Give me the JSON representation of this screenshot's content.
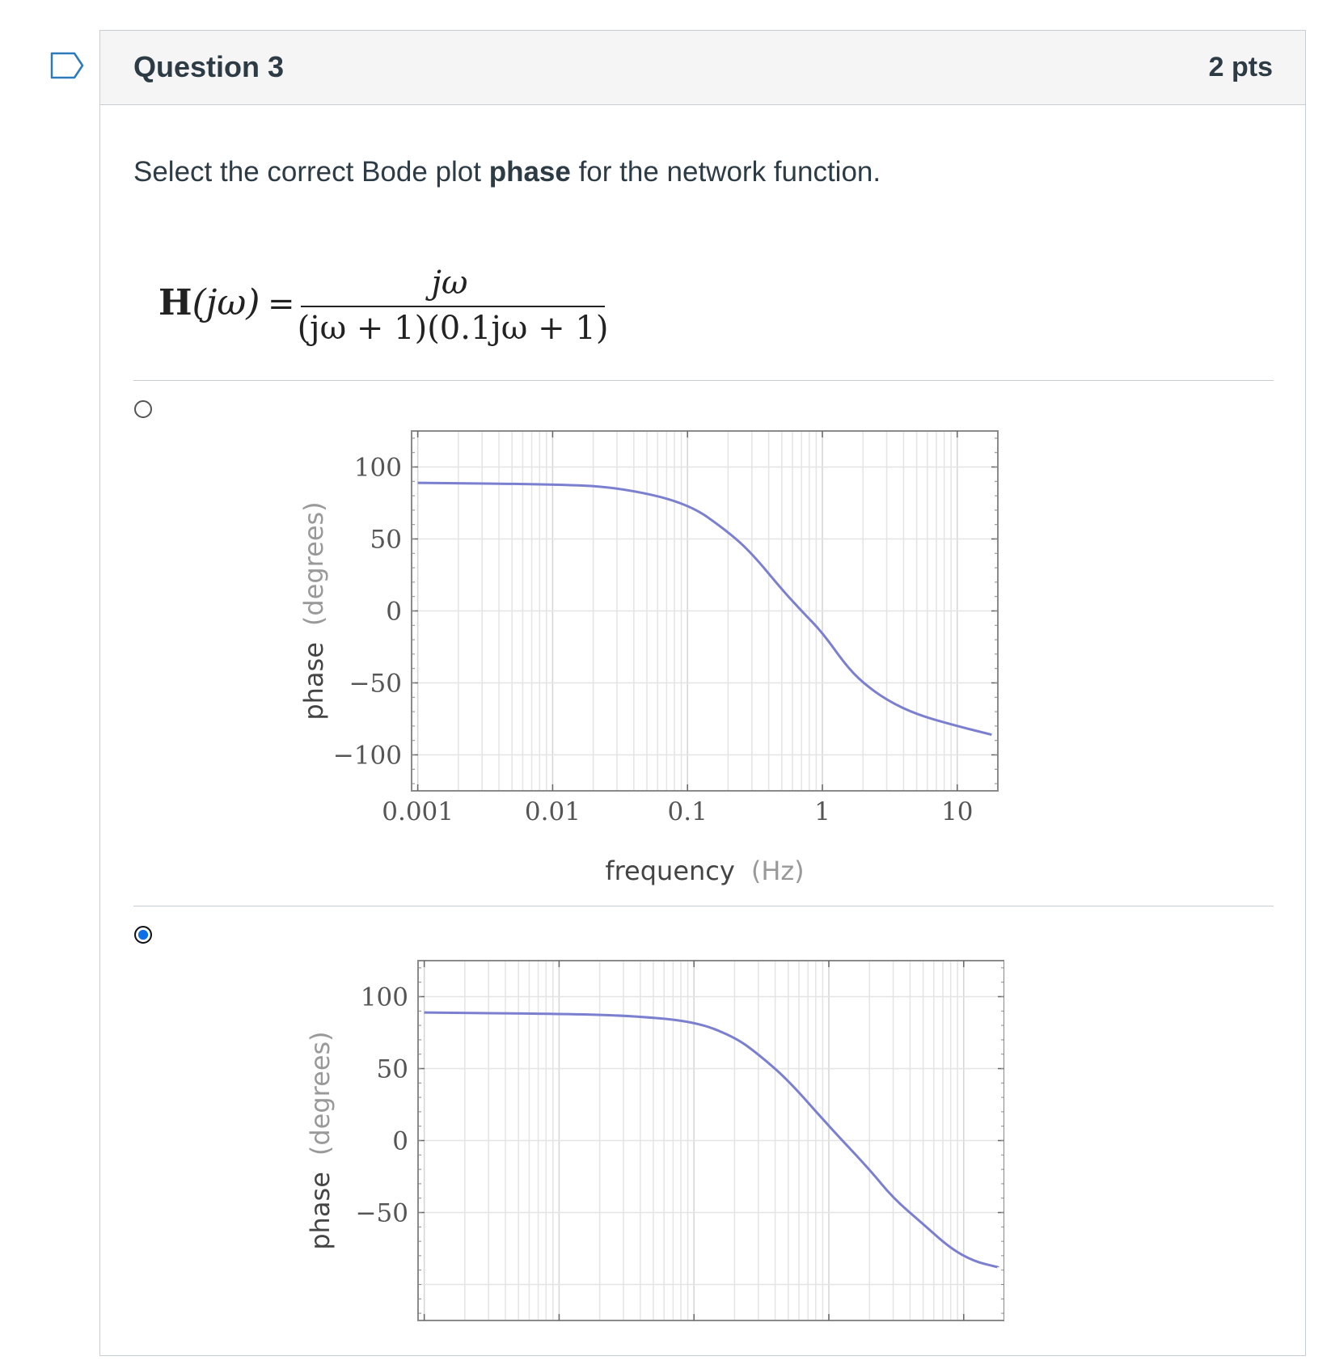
{
  "question": {
    "title": "Question 3",
    "points": "2 pts",
    "prompt_before": "Select the correct Bode plot ",
    "prompt_bold": "phase",
    "prompt_after": " for the network function.",
    "formula": {
      "lhs_bold": "H",
      "lhs_rest": "(jω)",
      "equals": "=",
      "numerator": "jω",
      "denominator": "(jω + 1)(0.1jω + 1)"
    }
  },
  "answers": [
    {
      "selected": false
    },
    {
      "selected": true
    }
  ],
  "chart_data": [
    {
      "type": "line",
      "xscale": "log",
      "xlabel": "frequency",
      "xlabel_unit": "(Hz)",
      "ylabel": "phase",
      "ylabel_unit": "(degrees)",
      "xlim": [
        0.0009,
        20
      ],
      "ylim": [
        -125,
        125
      ],
      "x_ticks": [
        "0.001",
        "0.01",
        "0.1",
        "1",
        "10"
      ],
      "y_ticks": [
        "100",
        "50",
        "0",
        "−50",
        "−100"
      ],
      "grid": true,
      "series": [
        {
          "color": "#7b7fd0",
          "x": [
            0.001,
            0.01,
            0.03,
            0.1,
            0.2,
            0.3,
            0.5,
            0.7,
            1,
            1.5,
            2,
            3,
            5,
            10,
            18
          ],
          "y": [
            89,
            88,
            86,
            75,
            55,
            40,
            15,
            0,
            -15,
            -38,
            -50,
            -62,
            -72,
            -80,
            -86
          ]
        }
      ]
    },
    {
      "type": "line",
      "xscale": "log",
      "xlabel": "",
      "ylabel": "phase",
      "ylabel_unit": "(degrees)",
      "xlim": [
        0.0009,
        20
      ],
      "ylim": [
        -125,
        125
      ],
      "y_ticks": [
        "100",
        "50",
        "0",
        "−50"
      ],
      "grid": true,
      "series": [
        {
          "color": "#7b7fd0",
          "x": [
            0.001,
            0.01,
            0.03,
            0.1,
            0.2,
            0.3,
            0.5,
            1,
            2,
            3,
            5,
            8,
            12,
            18
          ],
          "y": [
            89,
            88,
            87,
            83,
            72,
            60,
            42,
            10,
            -20,
            -40,
            -58,
            -75,
            -84,
            -88
          ]
        }
      ]
    }
  ]
}
